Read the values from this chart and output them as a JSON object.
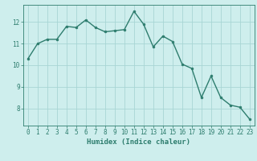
{
  "x": [
    0,
    1,
    2,
    3,
    4,
    5,
    6,
    7,
    8,
    9,
    10,
    11,
    12,
    13,
    14,
    15,
    16,
    17,
    18,
    19,
    20,
    21,
    22,
    23
  ],
  "y": [
    10.3,
    11.0,
    11.2,
    11.2,
    11.8,
    11.75,
    12.1,
    11.75,
    11.55,
    11.6,
    11.65,
    12.5,
    11.9,
    10.85,
    11.35,
    11.1,
    10.05,
    9.85,
    8.5,
    9.5,
    8.5,
    8.15,
    8.05,
    7.5
  ],
  "line_color": "#2e7d6e",
  "marker": "o",
  "marker_size": 2.0,
  "bg_color": "#ceeeed",
  "grid_color": "#a8d5d5",
  "xlabel": "Humidex (Indice chaleur)",
  "xlabel_fontsize": 6.5,
  "tick_fontsize": 5.5,
  "ylim": [
    7.2,
    12.8
  ],
  "xlim": [
    -0.5,
    23.5
  ],
  "yticks": [
    8,
    9,
    10,
    11,
    12
  ],
  "xticks": [
    0,
    1,
    2,
    3,
    4,
    5,
    6,
    7,
    8,
    9,
    10,
    11,
    12,
    13,
    14,
    15,
    16,
    17,
    18,
    19,
    20,
    21,
    22,
    23
  ],
  "spine_color": "#2e7d6e",
  "line_width": 1.0
}
